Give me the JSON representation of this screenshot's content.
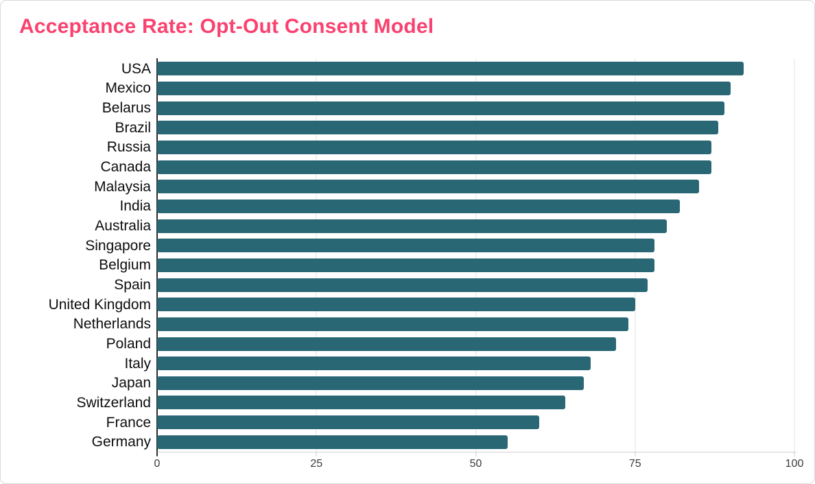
{
  "title": "Acceptance Rate: Opt-Out Consent Model",
  "colors": {
    "title": "#f9426f",
    "bar": "#296775",
    "gridline": "#e2e2e2",
    "yaxis_line": "#2b2b2b",
    "baseline": "#d0d0d0",
    "tick": "#cfcfcf",
    "tick_zero": "#2b2b2b",
    "tick_label": "#3a3a3a",
    "category_label": "#0d0d0d",
    "background": "#ffffff",
    "card_border": "#d8d8d8"
  },
  "chart_data": {
    "type": "bar",
    "orientation": "horizontal",
    "title": "Acceptance Rate: Opt-Out Consent Model",
    "categories": [
      "USA",
      "Mexico",
      "Belarus",
      "Brazil",
      "Russia",
      "Canada",
      "Malaysia",
      "India",
      "Australia",
      "Singapore",
      "Belgium",
      "Spain",
      "United Kingdom",
      "Netherlands",
      "Poland",
      "Italy",
      "Japan",
      "Switzerland",
      "France",
      "Germany"
    ],
    "values": [
      92,
      90,
      89,
      88,
      87,
      87,
      85,
      82,
      80,
      78,
      78,
      77,
      75,
      74,
      72,
      68,
      67,
      64,
      60,
      55
    ],
    "xlabel": "",
    "ylabel": "",
    "xlim": [
      0,
      100
    ],
    "xticks": [
      0,
      25,
      50,
      75,
      100
    ],
    "grid": "vertical-only",
    "legend": "none",
    "sort": "descending"
  }
}
